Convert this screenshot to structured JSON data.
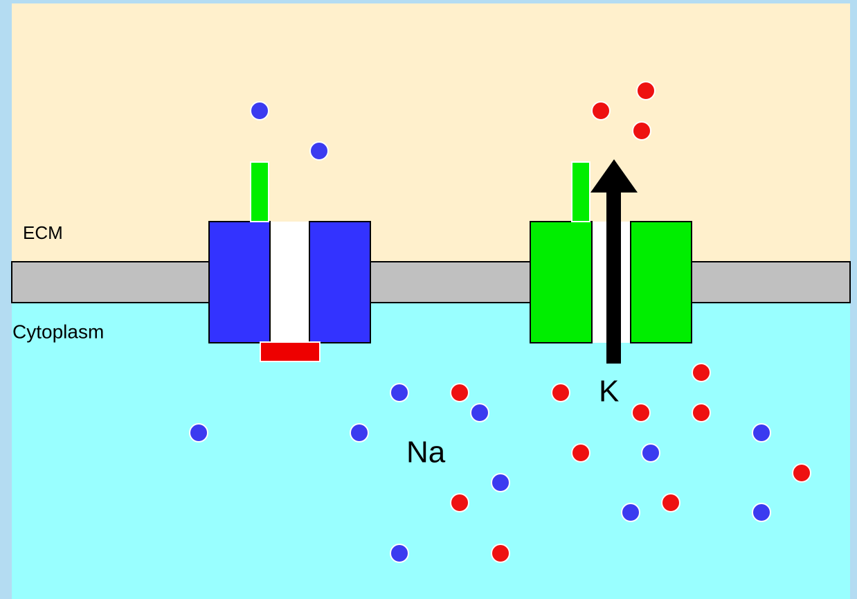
{
  "labels": {
    "ecm": "ECM",
    "cytoplasm": "Cytoplasm",
    "sodium": "Na",
    "potassium": "K"
  }
}
